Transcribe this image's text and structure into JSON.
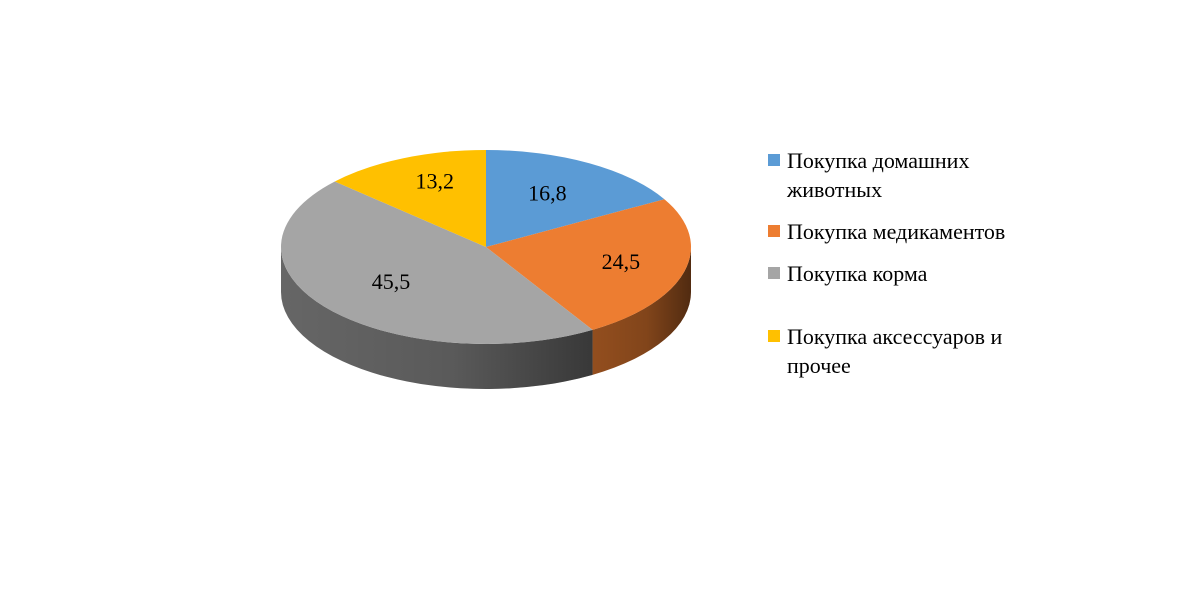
{
  "chart_data": {
    "type": "pie",
    "style": "3d",
    "title": "",
    "legend_position": "right",
    "slices": [
      {
        "label": "Покупка домашних животных",
        "value": 16.8,
        "display": "16,8",
        "color": "#5B9BD5"
      },
      {
        "label": "Покупка медикаментов",
        "value": 24.5,
        "display": "24,5",
        "color": "#ED7D31"
      },
      {
        "label": "Покупка корма",
        "value": 45.5,
        "display": "45,5",
        "color": "#A5A5A5"
      },
      {
        "label": "Покупка аксессуаров и прочее",
        "value": 13.2,
        "display": "13,2",
        "color": "#FFC000"
      }
    ]
  }
}
